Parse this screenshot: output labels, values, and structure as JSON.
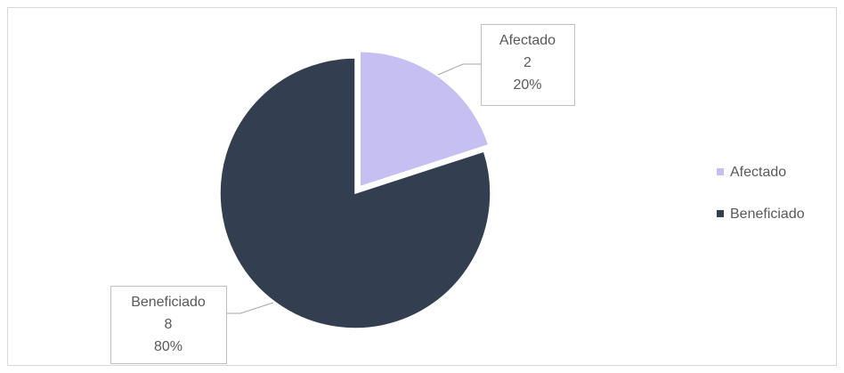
{
  "chart_data": {
    "type": "pie",
    "categories": [
      "Afectado",
      "Beneficiado"
    ],
    "values": [
      2,
      8
    ],
    "percent_labels": [
      "20%",
      "80%"
    ],
    "colors": [
      "#c5bff2",
      "#333f50"
    ],
    "legend": "right"
  }
}
